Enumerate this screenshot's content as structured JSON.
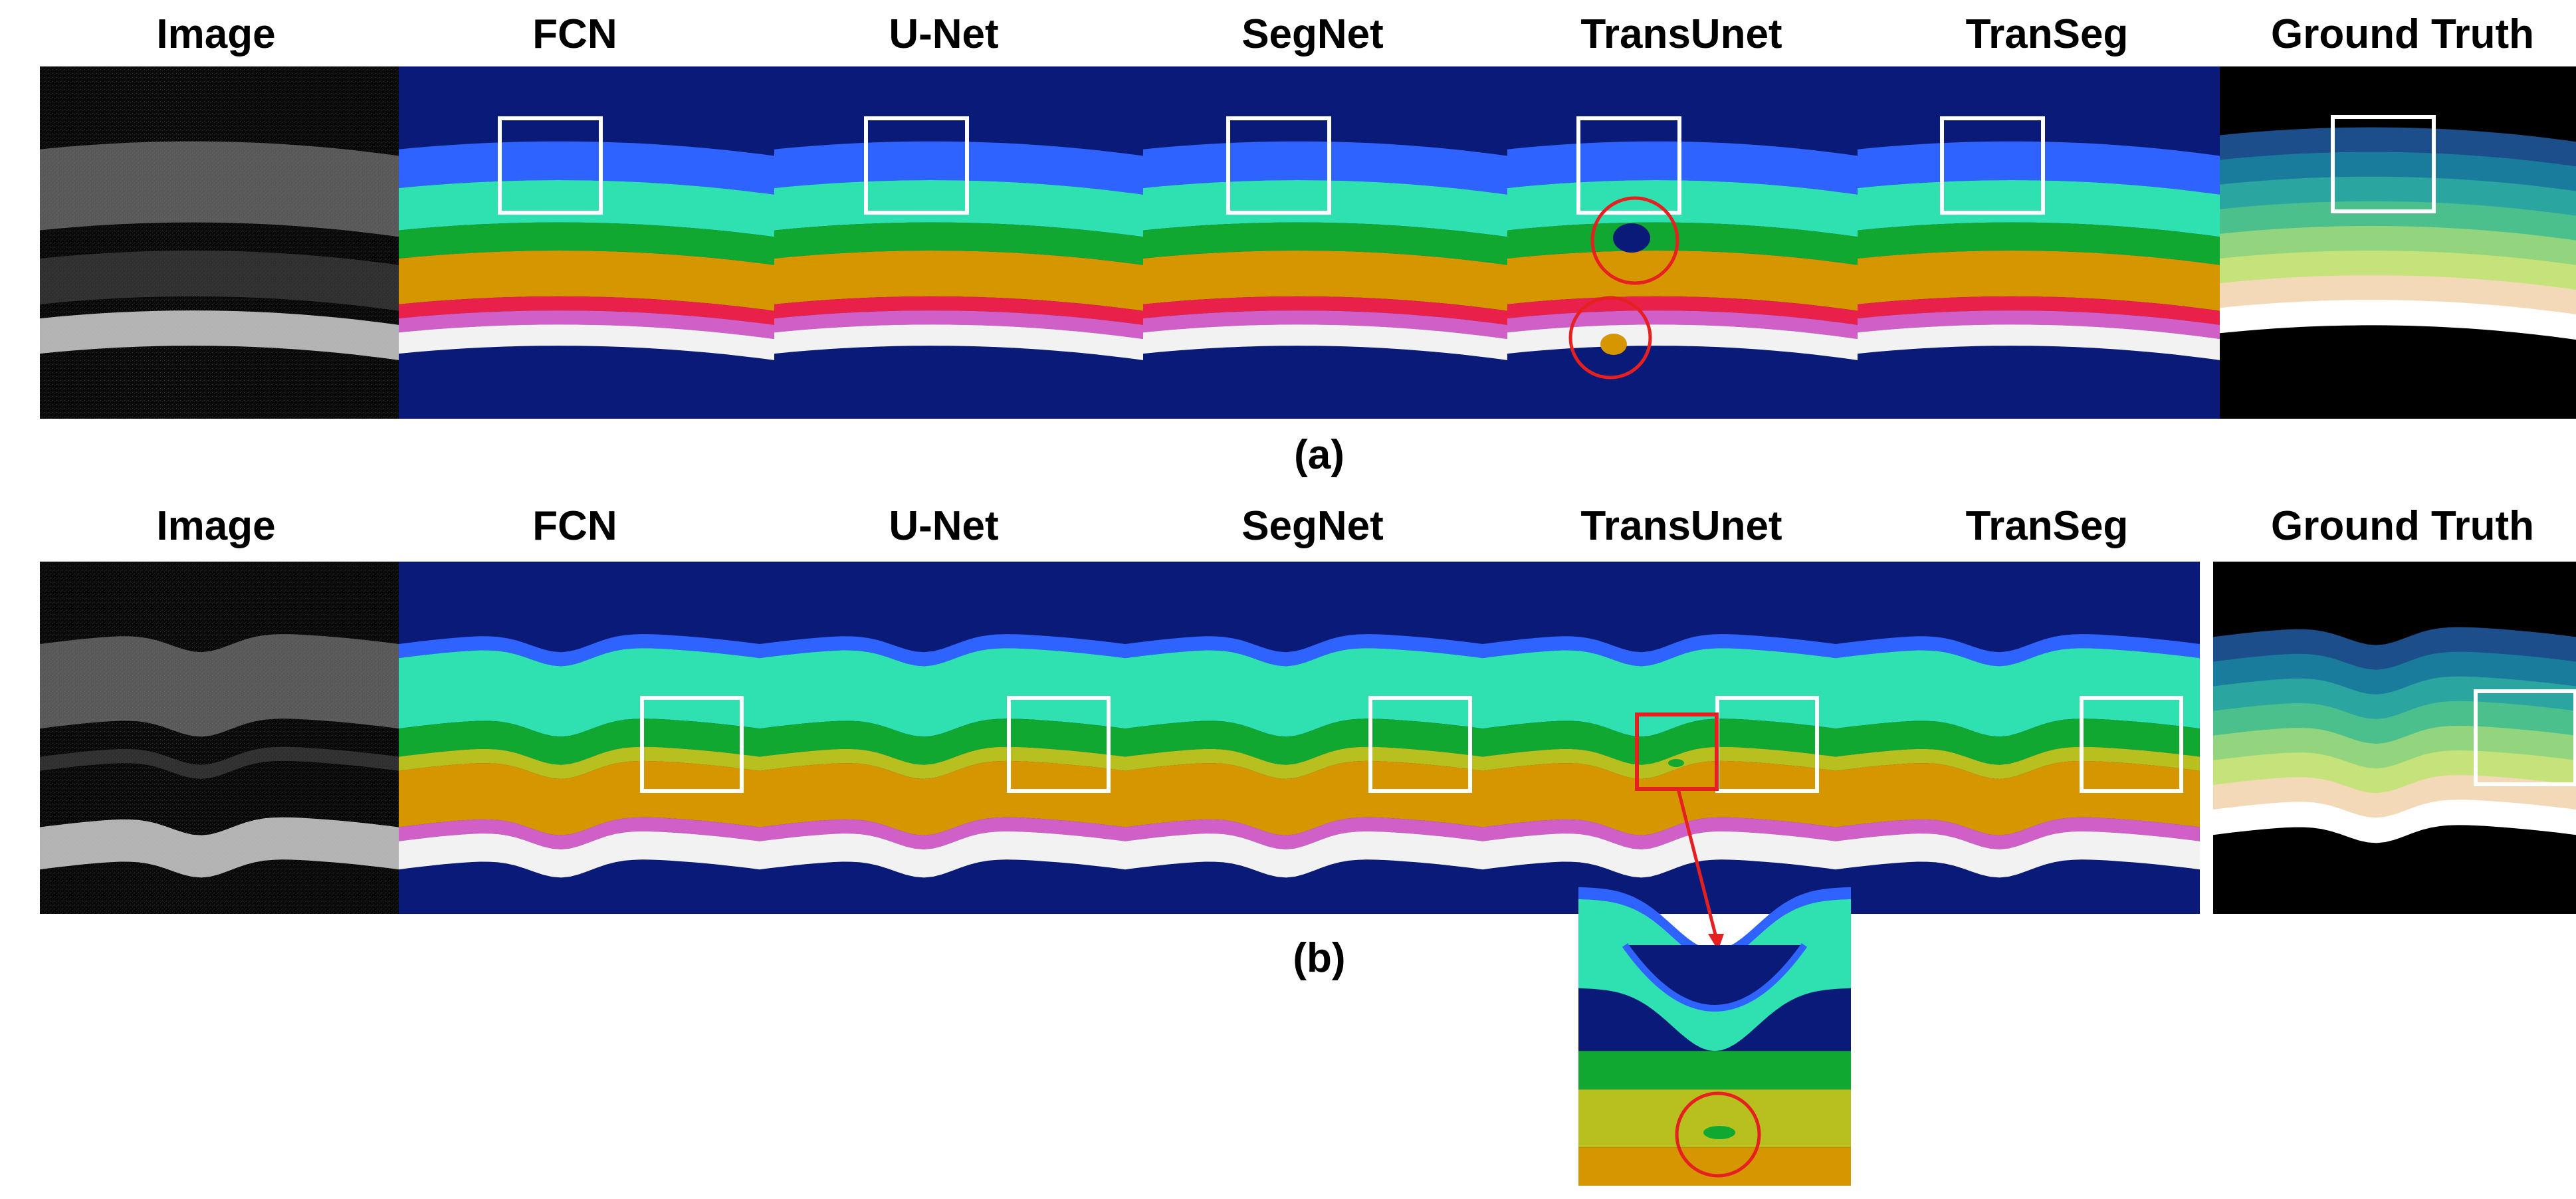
{
  "figure": {
    "row_a": {
      "caption": "(a)",
      "columns": [
        "Image",
        "FCN",
        "U-Net",
        "SegNet",
        "TransUnet",
        "TranSeg",
        "Ground Truth"
      ]
    },
    "row_b": {
      "caption": "(b)",
      "columns": [
        "Image",
        "FCN",
        "U-Net",
        "SegNet",
        "TransUnet",
        "TranSeg",
        "Ground Truth"
      ]
    }
  },
  "colors": {
    "background": "#0a1a78",
    "layer_top": "#2f63ff",
    "layer_cyan": "#2fe0b0",
    "layer_green": "#10a830",
    "layer_olive": "#b8c020",
    "layer_orange": "#d69600",
    "layer_red": "#e8204a",
    "layer_magenta": "#d060c8",
    "layer_white": "#f2f2f2",
    "highlight_box": "#ffffff",
    "error_marker": "#e62020",
    "gt_layers": [
      "#1b4e8a",
      "#1a7c9c",
      "#2aa5a0",
      "#4cc08c",
      "#93d47f",
      "#c6e27a",
      "#f3d9b8",
      "#ffffff"
    ]
  }
}
